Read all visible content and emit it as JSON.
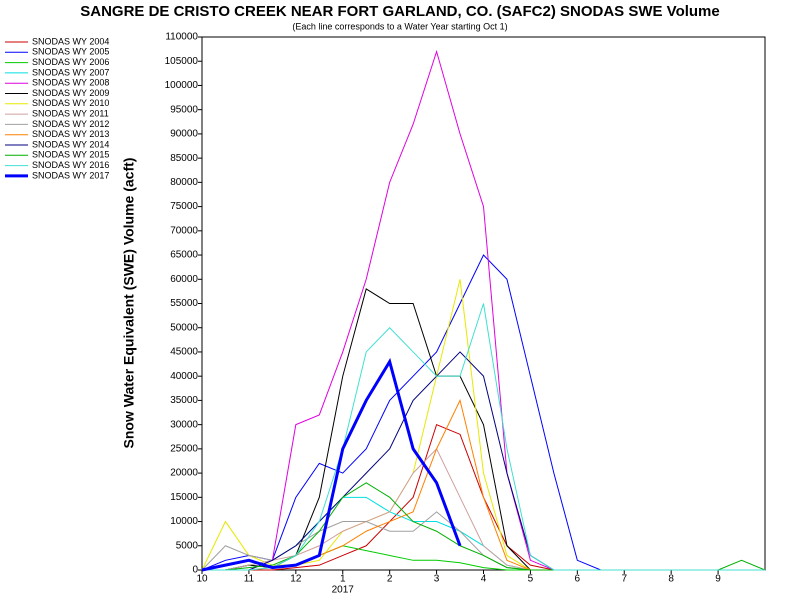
{
  "chart_data": {
    "type": "line",
    "title": "SANGRE DE CRISTO CREEK NEAR FORT GARLAND, CO. (SAFC2) SNODAS SWE Volume",
    "subtitle": "(Each line corresponds to a Water Year starting Oct 1)",
    "y_label": "Snow Water Equivalent (SWE) Volume (acft)",
    "x_annotation": {
      "x": 3,
      "text": "2017"
    },
    "xlim": [
      0,
      12
    ],
    "ylim": [
      0,
      110000
    ],
    "xticks": [
      {
        "value": 0,
        "label": "10"
      },
      {
        "value": 1,
        "label": "11"
      },
      {
        "value": 2,
        "label": "12"
      },
      {
        "value": 3,
        "label": "1"
      },
      {
        "value": 4,
        "label": "2"
      },
      {
        "value": 5,
        "label": "3"
      },
      {
        "value": 6,
        "label": "4"
      },
      {
        "value": 7,
        "label": "5"
      },
      {
        "value": 8,
        "label": "6"
      },
      {
        "value": 9,
        "label": "7"
      },
      {
        "value": 10,
        "label": "8"
      },
      {
        "value": 11,
        "label": "9"
      }
    ],
    "yticks": [
      0,
      5000,
      10000,
      15000,
      20000,
      25000,
      30000,
      35000,
      40000,
      45000,
      50000,
      55000,
      60000,
      65000,
      70000,
      75000,
      80000,
      85000,
      90000,
      95000,
      100000,
      105000,
      110000
    ],
    "x": [
      0,
      0.5,
      1,
      1.5,
      2,
      2.5,
      3,
      3.5,
      4,
      4.5,
      5,
      5.5,
      6,
      6.5,
      7,
      7.5,
      8,
      8.5,
      9,
      9.5,
      10,
      10.5,
      11,
      11.5,
      12
    ],
    "series": [
      {
        "name": "SNODAS WY 2004",
        "color": "#cc0000",
        "width": 1,
        "values": [
          0,
          0,
          0,
          0,
          500,
          1000,
          3000,
          5000,
          10000,
          15000,
          30000,
          28000,
          15000,
          5000,
          1000,
          0,
          0,
          0,
          0,
          0,
          0,
          0,
          0,
          0,
          0
        ]
      },
      {
        "name": "SNODAS WY 2005",
        "color": "#0000ff",
        "width": 1,
        "values": [
          0,
          2000,
          3000,
          2000,
          15000,
          22000,
          20000,
          25000,
          35000,
          40000,
          45000,
          55000,
          65000,
          60000,
          40000,
          20000,
          2000,
          0,
          0,
          0,
          0,
          0,
          0,
          0,
          0
        ]
      },
      {
        "name": "SNODAS WY 2006",
        "color": "#00cc00",
        "width": 1,
        "values": [
          0,
          0,
          1000,
          500,
          1000,
          3000,
          5000,
          4000,
          3000,
          2000,
          2000,
          1500,
          500,
          0,
          0,
          0,
          0,
          0,
          0,
          0,
          0,
          0,
          0,
          0,
          0
        ]
      },
      {
        "name": "SNODAS WY 2007",
        "color": "#00e0e0",
        "width": 1,
        "values": [
          0,
          0,
          1000,
          2000,
          5000,
          10000,
          15000,
          15000,
          12000,
          10000,
          10000,
          8000,
          5000,
          1000,
          0,
          0,
          0,
          0,
          0,
          0,
          0,
          0,
          0,
          0,
          0
        ]
      },
      {
        "name": "SNODAS WY 2008",
        "color": "#e000e0",
        "width": 1,
        "values": [
          0,
          0,
          0,
          2000,
          30000,
          32000,
          45000,
          60000,
          80000,
          92000,
          107000,
          90000,
          75000,
          20000,
          2000,
          0,
          0,
          0,
          0,
          0,
          0,
          0,
          0,
          0,
          0
        ]
      },
      {
        "name": "SNODAS WY 2009",
        "color": "#000000",
        "width": 1,
        "values": [
          0,
          0,
          1000,
          500,
          3000,
          15000,
          40000,
          58000,
          55000,
          55000,
          40000,
          40000,
          30000,
          5000,
          0,
          0,
          0,
          0,
          0,
          0,
          0,
          0,
          0,
          0,
          0
        ]
      },
      {
        "name": "SNODAS WY 2010",
        "color": "#e8e800",
        "width": 1,
        "values": [
          0,
          10000,
          3000,
          1000,
          1000,
          2000,
          8000,
          10000,
          12000,
          20000,
          40000,
          60000,
          20000,
          3000,
          0,
          0,
          0,
          0,
          0,
          0,
          0,
          0,
          0,
          0,
          0
        ]
      },
      {
        "name": "SNODAS WY 2011",
        "color": "#d0a0a0",
        "width": 1,
        "values": [
          0,
          0,
          1000,
          2000,
          3000,
          5000,
          8000,
          10000,
          12000,
          20000,
          25000,
          15000,
          5000,
          1000,
          0,
          0,
          0,
          0,
          0,
          0,
          0,
          0,
          0,
          0,
          0
        ]
      },
      {
        "name": "SNODAS WY 2012",
        "color": "#a0a0a0",
        "width": 1,
        "values": [
          0,
          5000,
          3000,
          2000,
          5000,
          8000,
          10000,
          10000,
          8000,
          8000,
          12000,
          8000,
          3000,
          500,
          0,
          0,
          0,
          0,
          0,
          0,
          0,
          0,
          0,
          0,
          0
        ]
      },
      {
        "name": "SNODAS WY 2013",
        "color": "#ff8000",
        "width": 1,
        "values": [
          0,
          0,
          0,
          500,
          1000,
          3000,
          5000,
          8000,
          10000,
          12000,
          25000,
          35000,
          15000,
          2000,
          0,
          0,
          0,
          0,
          0,
          0,
          0,
          0,
          0,
          0,
          0
        ]
      },
      {
        "name": "SNODAS WY 2014",
        "color": "#000080",
        "width": 1,
        "values": [
          0,
          0,
          0,
          2000,
          5000,
          10000,
          15000,
          20000,
          25000,
          35000,
          40000,
          45000,
          40000,
          20000,
          3000,
          0,
          0,
          0,
          0,
          0,
          0,
          0,
          0,
          0,
          0
        ]
      },
      {
        "name": "SNODAS WY 2015",
        "color": "#00b000",
        "width": 1,
        "values": [
          0,
          0,
          500,
          1000,
          3000,
          8000,
          15000,
          18000,
          15000,
          10000,
          8000,
          5000,
          3000,
          500,
          0,
          0,
          0,
          0,
          0,
          0,
          0,
          0,
          0,
          2000,
          0
        ]
      },
      {
        "name": "SNODAS WY 2016",
        "color": "#40e0d0",
        "width": 1,
        "values": [
          0,
          0,
          0,
          500,
          3000,
          10000,
          25000,
          45000,
          50000,
          45000,
          40000,
          40000,
          55000,
          25000,
          3000,
          0,
          0,
          0,
          0,
          0,
          0,
          0,
          0,
          0,
          0
        ]
      },
      {
        "name": "SNODAS WY 2017",
        "color": "#0000ff",
        "width": 3,
        "values": [
          0,
          1000,
          2000,
          500,
          1000,
          3000,
          25000,
          35000,
          43000,
          25000,
          18000,
          5000,
          null,
          null,
          null,
          null,
          null,
          null,
          null,
          null,
          null,
          null,
          null,
          null,
          null
        ]
      }
    ]
  }
}
